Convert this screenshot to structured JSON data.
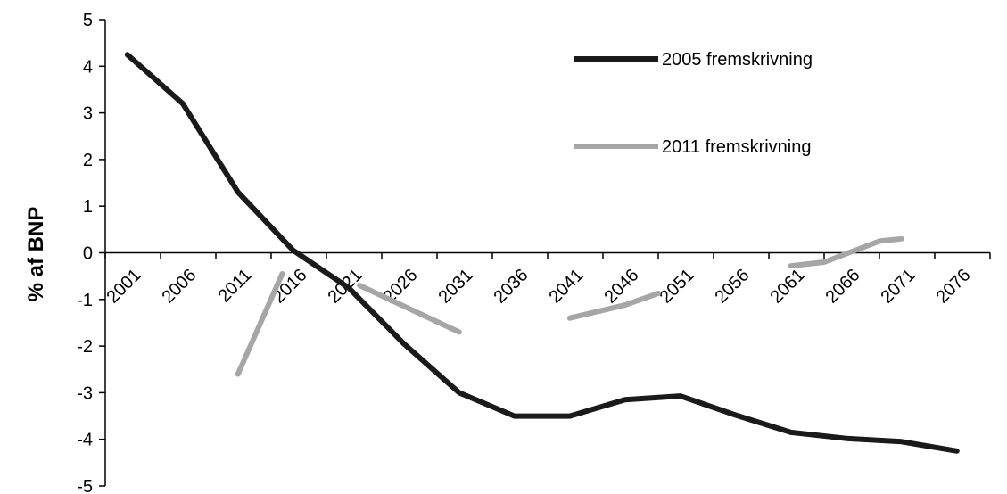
{
  "chart_data": {
    "type": "line",
    "title": "",
    "xlabel": "",
    "ylabel": "% af BNP",
    "x_tick_labels": [
      "2001",
      "2006",
      "2011",
      "2016",
      "2021",
      "2026",
      "2031",
      "2036",
      "2041",
      "2046",
      "2051",
      "2056",
      "2061",
      "2066",
      "2071",
      "2076"
    ],
    "ylim": [
      -5,
      5
    ],
    "y_ticks": [
      5,
      4,
      3,
      2,
      1,
      0,
      -1,
      -2,
      -3,
      -4,
      -5
    ],
    "grid": false,
    "legend_placement": "top-right",
    "series": [
      {
        "name": "2005 fremskrivning",
        "color": "#1a1a1a",
        "points": [
          {
            "x": 2003,
            "y": 4.25
          },
          {
            "x": 2008,
            "y": 3.2
          },
          {
            "x": 2013,
            "y": 1.3
          },
          {
            "x": 2018,
            "y": 0.05
          },
          {
            "x": 2023,
            "y": -0.75
          },
          {
            "x": 2028,
            "y": -1.95
          },
          {
            "x": 2033,
            "y": -3.0
          },
          {
            "x": 2038,
            "y": -3.5
          },
          {
            "x": 2043,
            "y": -3.5
          },
          {
            "x": 2048,
            "y": -3.15
          },
          {
            "x": 2053,
            "y": -3.07
          },
          {
            "x": 2058,
            "y": -3.48
          },
          {
            "x": 2063,
            "y": -3.85
          },
          {
            "x": 2068,
            "y": -3.98
          },
          {
            "x": 2073,
            "y": -4.05
          },
          {
            "x": 2078,
            "y": -4.25
          }
        ]
      },
      {
        "name": "2011 fremskrivning",
        "color": "#a6a6a6",
        "segments": [
          [
            {
              "x": 2013,
              "y": -2.6
            },
            {
              "x": 2017,
              "y": -0.45
            }
          ],
          [
            {
              "x": 2024,
              "y": -0.7
            },
            {
              "x": 2033,
              "y": -1.7
            }
          ],
          [
            {
              "x": 2043,
              "y": -1.4
            },
            {
              "x": 2048,
              "y": -1.12
            },
            {
              "x": 2051,
              "y": -0.87
            }
          ],
          [
            {
              "x": 2063,
              "y": -0.28
            },
            {
              "x": 2066,
              "y": -0.2
            },
            {
              "x": 2071,
              "y": 0.25
            },
            {
              "x": 2073,
              "y": 0.3
            }
          ]
        ]
      }
    ]
  }
}
